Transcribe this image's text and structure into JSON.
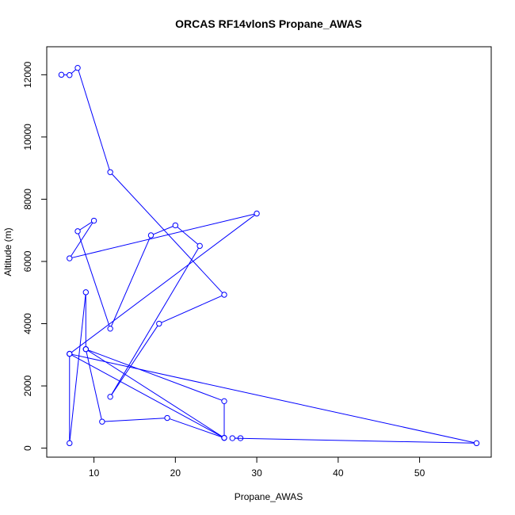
{
  "chart_data": {
    "type": "line",
    "title": "ORCAS RF14vlonS Propane_AWAS",
    "xlabel": "Propane_AWAS",
    "ylabel": "Altitude (m)",
    "xlim": [
      4.2,
      58.8
    ],
    "ylim": [
      -290,
      12900
    ],
    "xticks": [
      10,
      20,
      30,
      40,
      50
    ],
    "yticks": [
      0,
      2000,
      4000,
      6000,
      8000,
      10000,
      12000
    ],
    "color": "#0000ff",
    "markers": "open-circle",
    "grid": false,
    "x": [
      6,
      7,
      8,
      12,
      26,
      18,
      12,
      23,
      20,
      17,
      12,
      8,
      10,
      7,
      30,
      7,
      7,
      9,
      9,
      11,
      19,
      26,
      26,
      9,
      26,
      7,
      57,
      27,
      28
    ],
    "y": [
      12000,
      11990,
      12220,
      8870,
      4930,
      4000,
      1650,
      6500,
      7160,
      6840,
      3840,
      6970,
      7310,
      6100,
      7540,
      3030,
      160,
      5010,
      3180,
      850,
      970,
      330,
      1510,
      3180,
      330,
      3030,
      160,
      320,
      320
    ]
  }
}
